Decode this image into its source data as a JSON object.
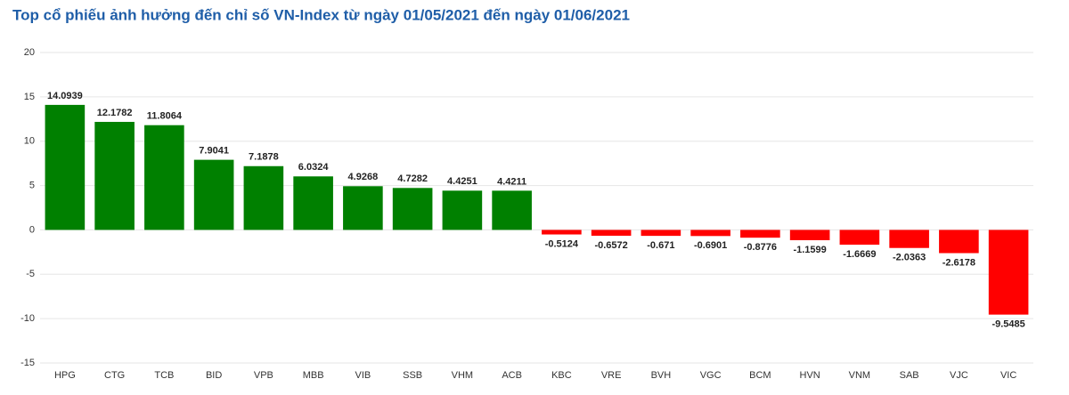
{
  "chart_data": {
    "type": "bar",
    "title": "Top cổ phiếu ảnh hưởng đến chỉ số VN-Index từ ngày 01/05/2021 đến ngày 01/06/2021",
    "categories": [
      "HPG",
      "CTG",
      "TCB",
      "BID",
      "VPB",
      "MBB",
      "VIB",
      "SSB",
      "VHM",
      "ACB",
      "KBC",
      "VRE",
      "BVH",
      "VGC",
      "BCM",
      "HVN",
      "VNM",
      "SAB",
      "VJC",
      "VIC"
    ],
    "values": [
      14.0939,
      12.1782,
      11.8064,
      7.9041,
      7.1878,
      6.0324,
      4.9268,
      4.7282,
      4.4251,
      4.4211,
      -0.5124,
      -0.6572,
      -0.671,
      -0.6901,
      -0.8776,
      -1.1599,
      -1.6669,
      -2.0363,
      -2.6178,
      -9.5485
    ],
    "positive_color": "#008000",
    "negative_color": "#ff0000",
    "ylim": [
      -15,
      20
    ],
    "yticks": [
      -15,
      -10,
      -5,
      0,
      5,
      10,
      15,
      20
    ],
    "grid": true
  }
}
